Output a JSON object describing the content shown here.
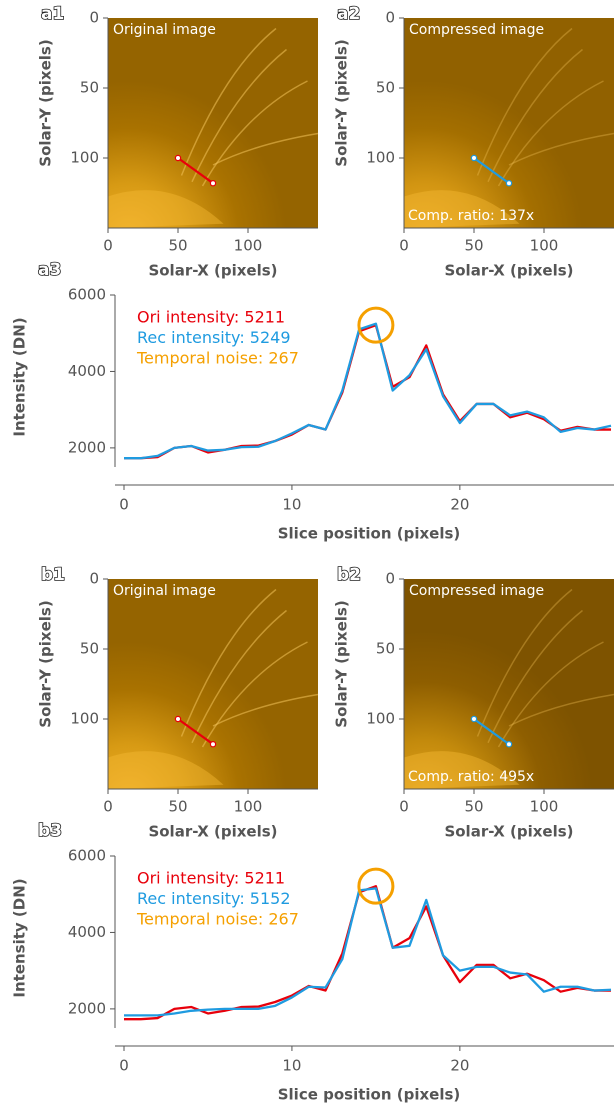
{
  "chart_data": [
    {
      "type": "image",
      "panel": "a1",
      "title": "Original image",
      "style": "original",
      "xlabel": "Solar-X (pixels)",
      "ylabel": "Solar-Y (pixels)",
      "xlim": [
        0,
        150
      ],
      "ylim": [
        0,
        150
      ],
      "y_inverted": true,
      "xticks": [
        0,
        50,
        100
      ],
      "yticks": [
        0,
        50,
        100
      ],
      "slice": {
        "x": [
          50,
          75
        ],
        "y": [
          100,
          118
        ],
        "color": "#e8000b"
      }
    },
    {
      "type": "image",
      "panel": "a2",
      "title": "Compressed image",
      "note": "Comp. ratio: 137x",
      "style": "compressed",
      "xlabel": "Solar-X (pixels)",
      "ylabel": "Solar-Y (pixels)",
      "xlim": [
        0,
        150
      ],
      "ylim": [
        0,
        150
      ],
      "y_inverted": true,
      "xticks": [
        0,
        50,
        100
      ],
      "yticks": [
        0,
        50,
        100
      ],
      "slice": {
        "x": [
          50,
          75
        ],
        "y": [
          100,
          118
        ],
        "color": "#1f9be0"
      }
    },
    {
      "type": "line",
      "panel": "a3",
      "xlabel": "Slice position (pixels)",
      "ylabel": "Intensity (DN)",
      "x": [
        0,
        1,
        2,
        3,
        4,
        5,
        6,
        7,
        8,
        9,
        10,
        11,
        12,
        13,
        14,
        15,
        16,
        17,
        18,
        19,
        20,
        21,
        22,
        23,
        24,
        25,
        26,
        27,
        28,
        29
      ],
      "xlim": [
        0,
        29
      ],
      "ylim": [
        1500,
        6000
      ],
      "xticks": [
        0,
        10,
        20
      ],
      "yticks": [
        2000,
        4000,
        6000
      ],
      "series": [
        {
          "color": "#e8000b",
          "values": [
            1730,
            1730,
            1760,
            2000,
            2050,
            1880,
            1950,
            2050,
            2060,
            2180,
            2350,
            2600,
            2480,
            3450,
            5050,
            5211,
            3600,
            3850,
            4680,
            3400,
            2700,
            3150,
            3150,
            2800,
            2920,
            2750,
            2450,
            2550,
            2480,
            2480
          ]
        },
        {
          "color": "#1f9be0",
          "values": [
            1730,
            1730,
            1790,
            2000,
            2050,
            1930,
            1950,
            2020,
            2030,
            2180,
            2380,
            2600,
            2480,
            3500,
            5100,
            5249,
            3500,
            3900,
            4580,
            3350,
            2650,
            3150,
            3150,
            2850,
            2950,
            2800,
            2420,
            2520,
            2480,
            2580
          ]
        }
      ],
      "annotations": [
        {
          "text": "Ori intensity: 5211",
          "color": "#e8000b"
        },
        {
          "text": "Rec intensity: 5249",
          "color": "#1f9be0"
        },
        {
          "text": "Temporal noise: 267",
          "color": "#f5a000"
        }
      ]
    },
    {
      "type": "image",
      "panel": "b1",
      "title": "Original image",
      "style": "original",
      "xlabel": "Solar-X (pixels)",
      "ylabel": "Solar-Y (pixels)",
      "xlim": [
        0,
        150
      ],
      "ylim": [
        0,
        150
      ],
      "y_inverted": true,
      "xticks": [
        0,
        50,
        100
      ],
      "yticks": [
        0,
        50,
        100
      ],
      "slice": {
        "x": [
          50,
          75
        ],
        "y": [
          100,
          118
        ],
        "color": "#e8000b"
      }
    },
    {
      "type": "image",
      "panel": "b2",
      "title": "Compressed image",
      "note": "Comp. ratio: 495x",
      "style": "dark",
      "xlabel": "Solar-X (pixels)",
      "ylabel": "Solar-Y (pixels)",
      "xlim": [
        0,
        150
      ],
      "ylim": [
        0,
        150
      ],
      "y_inverted": true,
      "xticks": [
        0,
        50,
        100
      ],
      "yticks": [
        0,
        50,
        100
      ],
      "slice": {
        "x": [
          50,
          75
        ],
        "y": [
          100,
          118
        ],
        "color": "#1f9be0"
      }
    },
    {
      "type": "line",
      "panel": "b3",
      "xlabel": "Slice position (pixels)",
      "ylabel": "Intensity (DN)",
      "x": [
        0,
        1,
        2,
        3,
        4,
        5,
        6,
        7,
        8,
        9,
        10,
        11,
        12,
        13,
        14,
        15,
        16,
        17,
        18,
        19,
        20,
        21,
        22,
        23,
        24,
        25,
        26,
        27,
        28,
        29
      ],
      "xlim": [
        0,
        29
      ],
      "ylim": [
        1500,
        6000
      ],
      "xticks": [
        0,
        10,
        20
      ],
      "yticks": [
        2000,
        4000,
        6000
      ],
      "series": [
        {
          "color": "#e8000b",
          "values": [
            1730,
            1730,
            1760,
            2000,
            2050,
            1880,
            1950,
            2050,
            2060,
            2180,
            2350,
            2600,
            2480,
            3450,
            5050,
            5211,
            3600,
            3850,
            4680,
            3400,
            2700,
            3150,
            3150,
            2800,
            2920,
            2750,
            2450,
            2550,
            2480,
            2480
          ]
        },
        {
          "color": "#1f9be0",
          "values": [
            1830,
            1830,
            1830,
            1880,
            1950,
            1980,
            2000,
            2000,
            2000,
            2080,
            2300,
            2580,
            2560,
            3300,
            5100,
            5152,
            3600,
            3650,
            4850,
            3400,
            3000,
            3100,
            3100,
            2950,
            2900,
            2450,
            2580,
            2580,
            2480,
            2500
          ]
        }
      ],
      "annotations": [
        {
          "text": "Ori intensity: 5211",
          "color": "#e8000b"
        },
        {
          "text": "Rec intensity: 5152",
          "color": "#1f9be0"
        },
        {
          "text": "Temporal noise: 267",
          "color": "#f5a000"
        }
      ]
    }
  ]
}
